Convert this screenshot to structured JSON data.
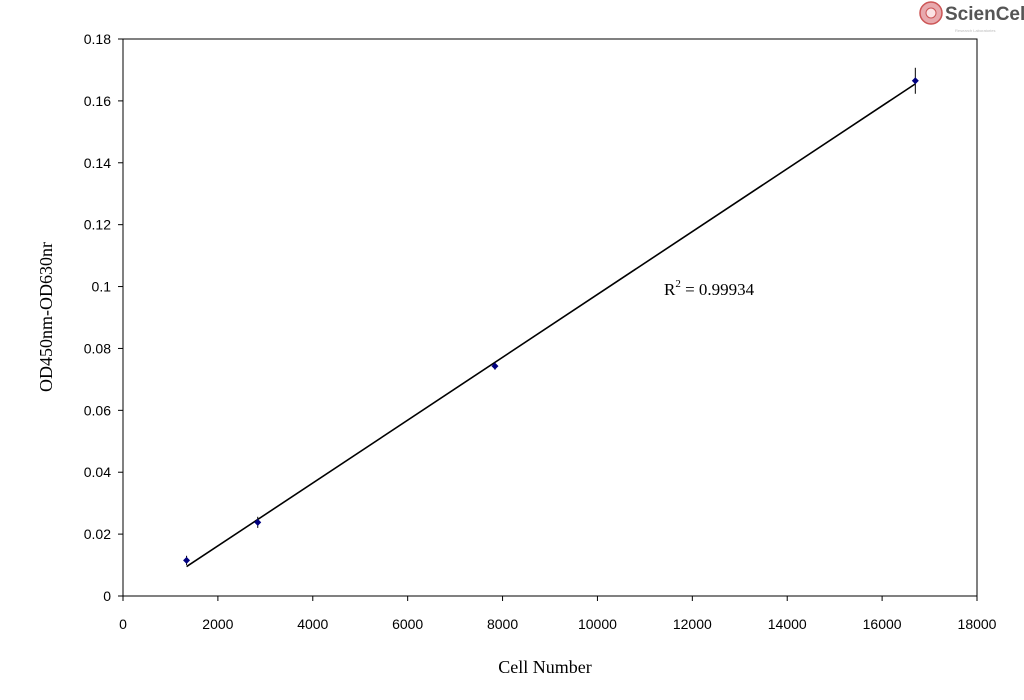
{
  "chart_data": {
    "type": "scatter",
    "title": "",
    "xlabel": "Cell Number",
    "ylabel": "OD450nm-OD630nr",
    "xlim": [
      0,
      18000
    ],
    "ylim": [
      0,
      0.18
    ],
    "x_ticks": [
      0,
      2000,
      4000,
      6000,
      8000,
      10000,
      12000,
      14000,
      16000,
      18000
    ],
    "y_ticks": [
      0,
      0.02,
      0.04,
      0.06,
      0.08,
      0.1,
      0.12,
      0.14,
      0.16,
      0.18
    ],
    "x_tick_labels": [
      "0",
      "2000",
      "4000",
      "6000",
      "8000",
      "10000",
      "12000",
      "14000",
      "16000",
      "18000"
    ],
    "y_tick_labels": [
      "0",
      "0.02",
      "0.04",
      "0.06",
      "0.08",
      "0.1",
      "0.12",
      "0.14",
      "0.16",
      "0.18"
    ],
    "series": [
      {
        "marker_color": "#000080",
        "points": [
          {
            "x": 1340,
            "y": 0.0115,
            "err": 0.0015
          },
          {
            "x": 2840,
            "y": 0.0238,
            "err": 0.0018
          },
          {
            "x": 7840,
            "y": 0.0743,
            "err": 0.0012
          },
          {
            "x": 16700,
            "y": 0.1665,
            "err": 0.0042
          }
        ]
      }
    ],
    "trendline": {
      "x_start": 1340,
      "x_end": 16700,
      "y_start": 0.0095,
      "y_end": 0.1655,
      "color": "#000000"
    },
    "annotation": {
      "prefix": "R",
      "superscript": "2",
      "text": " = 0.99934"
    },
    "grid": false,
    "legend": "none"
  },
  "logo": {
    "text": "ScienCell",
    "tagline": "Research Laboratories"
  }
}
